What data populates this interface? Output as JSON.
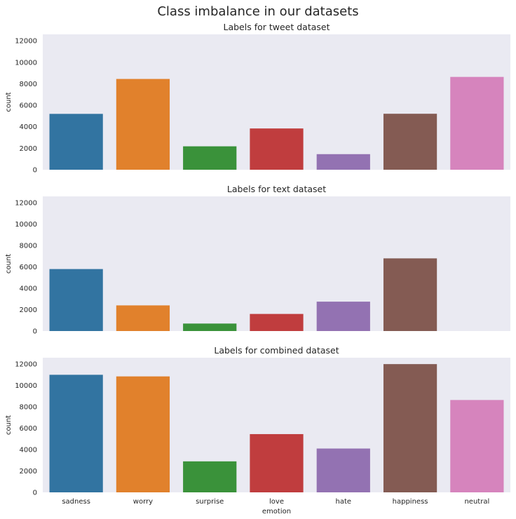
{
  "suptitle": "Class imbalance in our datasets",
  "colors": {
    "background": "#EAEAF2",
    "grid": "#FFFFFF",
    "text": "#262626",
    "palette": [
      "#1F77B4",
      "#FF7F0E",
      "#2CA02C",
      "#D62728",
      "#9467BD",
      "#8C564B",
      "#E377C2"
    ],
    "saturation": 0.75
  },
  "chart_data": [
    {
      "type": "bar",
      "title": "Labels for tweet dataset",
      "categories": [
        "sadness",
        "worry",
        "surprise",
        "love",
        "hate",
        "happiness",
        "neutral"
      ],
      "values": [
        5200,
        8450,
        2180,
        3840,
        1450,
        5210,
        8640
      ],
      "xlabel": "",
      "ylabel": "count",
      "ylim": [
        0,
        12600
      ],
      "yticks": [
        0,
        2000,
        4000,
        6000,
        8000,
        10000,
        12000
      ],
      "show_xticklabels": false,
      "grid": false
    },
    {
      "type": "bar",
      "title": "Labels for text dataset",
      "categories": [
        "sadness",
        "worry",
        "surprise",
        "love",
        "hate",
        "happiness",
        "neutral"
      ],
      "values": [
        5800,
        2400,
        700,
        1600,
        2750,
        6800,
        0
      ],
      "xlabel": "",
      "ylabel": "count",
      "ylim": [
        0,
        12600
      ],
      "yticks": [
        0,
        2000,
        4000,
        6000,
        8000,
        10000,
        12000
      ],
      "show_xticklabels": false,
      "grid": false
    },
    {
      "type": "bar",
      "title": "Labels for combined dataset",
      "categories": [
        "sadness",
        "worry",
        "surprise",
        "love",
        "hate",
        "happiness",
        "neutral"
      ],
      "values": [
        11000,
        10850,
        2900,
        5450,
        4100,
        12000,
        8640
      ],
      "xlabel": "emotion",
      "ylabel": "count",
      "ylim": [
        0,
        12600
      ],
      "yticks": [
        0,
        2000,
        4000,
        6000,
        8000,
        10000,
        12000
      ],
      "show_xticklabels": true,
      "grid": false
    }
  ]
}
